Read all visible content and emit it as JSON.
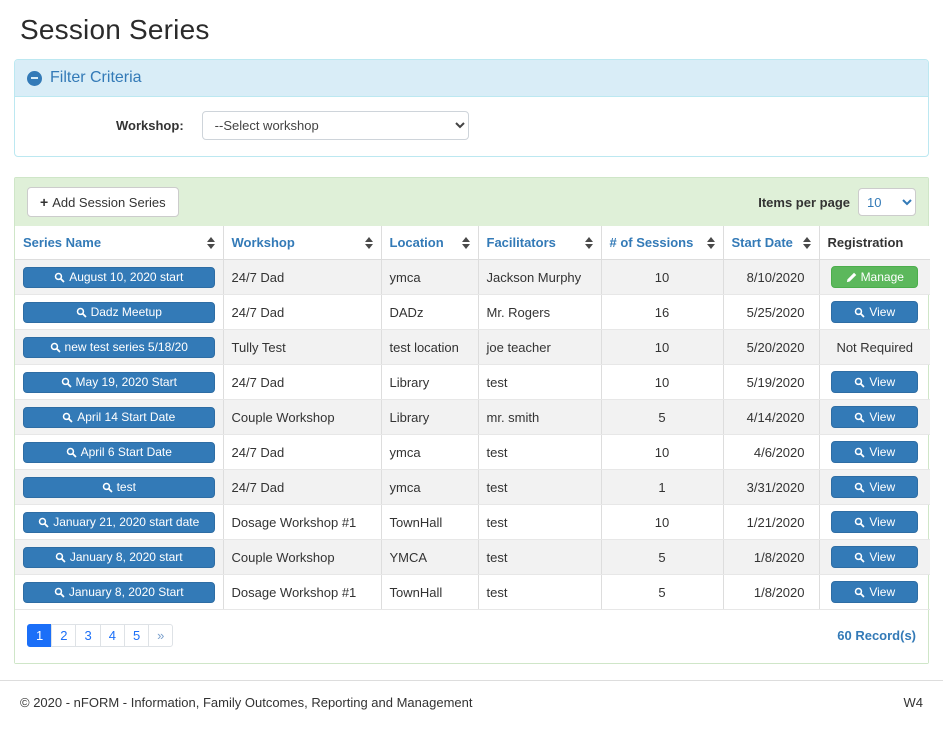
{
  "page": {
    "title": "Session Series"
  },
  "filter": {
    "title": "Filter Criteria",
    "collapse_icon": "minus-circle-icon",
    "workshop_label": "Workshop:",
    "workshop_selected": "--Select workshop"
  },
  "toolbar": {
    "add_button_label": "Add Session Series",
    "add_button_icon": "plus-icon",
    "items_per_page_label": "Items per page",
    "items_per_page_value": "10"
  },
  "table": {
    "columns": [
      {
        "label": "Series Name",
        "sortable": true
      },
      {
        "label": "Workshop",
        "sortable": true
      },
      {
        "label": "Location",
        "sortable": true
      },
      {
        "label": "Facilitators",
        "sortable": true
      },
      {
        "label": "# of Sessions",
        "sortable": true
      },
      {
        "label": "Start Date",
        "sortable": true
      },
      {
        "label": "Registration",
        "sortable": false
      }
    ],
    "rows": [
      {
        "series_name": "August 10, 2020 start",
        "workshop": "24/7 Dad",
        "location": "ymca",
        "facilitators": "Jackson Murphy",
        "sessions": 10,
        "start_date": "8/10/2020",
        "registration": {
          "type": "manage",
          "label": "Manage",
          "icon": "pencil-icon"
        }
      },
      {
        "series_name": "Dadz Meetup",
        "workshop": "24/7 Dad",
        "location": "DADz",
        "facilitators": "Mr. Rogers",
        "sessions": 16,
        "start_date": "5/25/2020",
        "registration": {
          "type": "view",
          "label": "View",
          "icon": "search-icon"
        }
      },
      {
        "series_name": "new test series 5/18/20",
        "workshop": "Tully Test",
        "location": "test location",
        "facilitators": "joe teacher",
        "sessions": 10,
        "start_date": "5/20/2020",
        "registration": {
          "type": "text",
          "label": "Not Required"
        }
      },
      {
        "series_name": "May 19, 2020 Start",
        "workshop": "24/7 Dad",
        "location": "Library",
        "facilitators": "test",
        "sessions": 10,
        "start_date": "5/19/2020",
        "registration": {
          "type": "view",
          "label": "View",
          "icon": "search-icon"
        }
      },
      {
        "series_name": "April 14 Start Date",
        "workshop": "Couple Workshop",
        "location": "Library",
        "facilitators": "mr. smith",
        "sessions": 5,
        "start_date": "4/14/2020",
        "registration": {
          "type": "view",
          "label": "View",
          "icon": "search-icon"
        }
      },
      {
        "series_name": "April 6 Start Date",
        "workshop": "24/7 Dad",
        "location": "ymca",
        "facilitators": "test",
        "sessions": 10,
        "start_date": "4/6/2020",
        "registration": {
          "type": "view",
          "label": "View",
          "icon": "search-icon"
        }
      },
      {
        "series_name": "test",
        "workshop": "24/7 Dad",
        "location": "ymca",
        "facilitators": "test",
        "sessions": 1,
        "start_date": "3/31/2020",
        "registration": {
          "type": "view",
          "label": "View",
          "icon": "search-icon"
        }
      },
      {
        "series_name": "January 21, 2020 start date",
        "workshop": "Dosage Workshop #1",
        "location": "TownHall",
        "facilitators": "test",
        "sessions": 10,
        "start_date": "1/21/2020",
        "registration": {
          "type": "view",
          "label": "View",
          "icon": "search-icon"
        }
      },
      {
        "series_name": "January 8, 2020 start",
        "workshop": "Couple Workshop",
        "location": "YMCA",
        "facilitators": "test",
        "sessions": 5,
        "start_date": "1/8/2020",
        "registration": {
          "type": "view",
          "label": "View",
          "icon": "search-icon"
        }
      },
      {
        "series_name": "January 8, 2020 Start",
        "workshop": "Dosage Workshop #1",
        "location": "TownHall",
        "facilitators": "test",
        "sessions": 5,
        "start_date": "1/8/2020",
        "registration": {
          "type": "view",
          "label": "View",
          "icon": "search-icon"
        }
      }
    ]
  },
  "pagination": {
    "pages": [
      "1",
      "2",
      "3",
      "4",
      "5",
      "»"
    ],
    "active": "1",
    "records_text": "60 Record(s)"
  },
  "footer": {
    "copyright": "© 2020 - nFORM - Information, Family Outcomes, Reporting and Management",
    "version": "W4"
  },
  "colors": {
    "primary": "#337ab7",
    "success": "#5cb85c",
    "info-bg": "#d9edf7",
    "info-border": "#bce8f1",
    "toolbar-green": "#dff0d8",
    "pagination-blue": "#1b6ff8",
    "stripe": "#f2f2f2"
  }
}
